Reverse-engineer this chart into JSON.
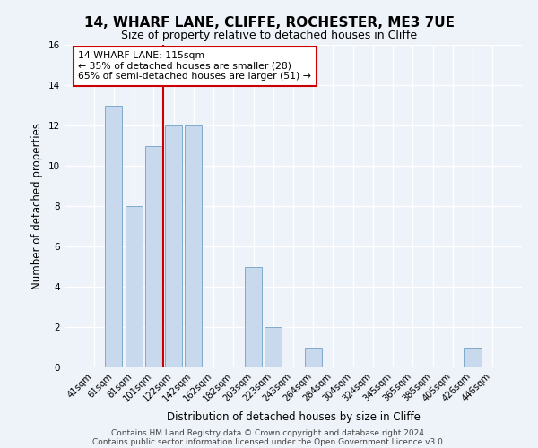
{
  "title": "14, WHARF LANE, CLIFFE, ROCHESTER, ME3 7UE",
  "subtitle": "Size of property relative to detached houses in Cliffe",
  "xlabel": "Distribution of detached houses by size in Cliffe",
  "ylabel": "Number of detached properties",
  "bar_labels": [
    "41sqm",
    "61sqm",
    "81sqm",
    "101sqm",
    "122sqm",
    "142sqm",
    "162sqm",
    "182sqm",
    "203sqm",
    "223sqm",
    "243sqm",
    "264sqm",
    "284sqm",
    "304sqm",
    "324sqm",
    "345sqm",
    "365sqm",
    "385sqm",
    "405sqm",
    "426sqm",
    "446sqm"
  ],
  "bar_values": [
    0,
    13,
    8,
    11,
    12,
    12,
    0,
    0,
    5,
    2,
    0,
    1,
    0,
    0,
    0,
    0,
    0,
    0,
    0,
    1,
    0
  ],
  "bar_color": "#c9d9ed",
  "bar_edge_color": "#7faacc",
  "vline_color": "#cc0000",
  "annotation_title": "14 WHARF LANE: 115sqm",
  "annotation_line2": "← 35% of detached houses are smaller (28)",
  "annotation_line3": "65% of semi-detached houses are larger (51) →",
  "annotation_box_color": "#ffffff",
  "annotation_box_edge": "#cc0000",
  "ylim": [
    0,
    16
  ],
  "yticks": [
    0,
    2,
    4,
    6,
    8,
    10,
    12,
    14,
    16
  ],
  "footer1": "Contains HM Land Registry data © Crown copyright and database right 2024.",
  "footer2": "Contains public sector information licensed under the Open Government Licence v3.0.",
  "bg_color": "#eef2f9",
  "plot_bg_color": "#eef2f9"
}
